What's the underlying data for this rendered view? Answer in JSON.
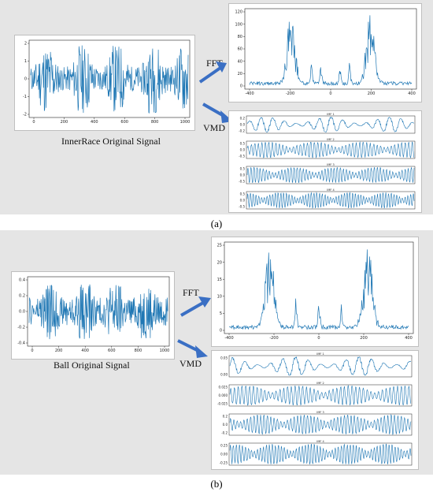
{
  "colors": {
    "signal": "#1f77b4",
    "arrow": "#3a6fc4",
    "panel": "#e5e5e5"
  },
  "panel_a": {
    "label": "(a)",
    "caption": "InnerRace Original Signal",
    "fft_label": "FFT",
    "vmd_label": "VMD",
    "imf_titles": [
      "IMF 1",
      "IMF 2",
      "IMF 3",
      "IMF 4"
    ]
  },
  "panel_b": {
    "label": "(b)",
    "caption": "Ball Original Signal",
    "fft_label": "FFT",
    "vmd_label": "VMD",
    "imf_titles": [
      "IMF 1",
      "IMF 2",
      "IMF 3",
      "IMF 4"
    ]
  },
  "chart_data": [
    {
      "id": "a-signal",
      "type": "line",
      "x_ticks": [
        "0",
        "200",
        "400",
        "600",
        "800",
        "1000"
      ],
      "y_ticks": [
        "2",
        "1",
        "0",
        "-1",
        "-2"
      ],
      "xlim": [
        0,
        1024
      ],
      "ylim": [
        -2.3,
        2.4
      ]
    },
    {
      "id": "a-fft",
      "type": "line",
      "x_ticks": [
        "-400",
        "-200",
        "0",
        "200",
        "400"
      ],
      "y_ticks": [
        "120",
        "100",
        "80",
        "60",
        "40",
        "20",
        "0"
      ],
      "xlim": [
        -512,
        512
      ],
      "ylim": [
        0,
        125
      ],
      "peaks": [
        -250,
        250,
        -60,
        60,
        -120,
        120
      ]
    },
    {
      "id": "a-imf1",
      "type": "line",
      "title": "IMF 1",
      "y_ticks": [
        "0.2",
        "0.0",
        "-0.2"
      ],
      "xlim": [
        0,
        1024
      ]
    },
    {
      "id": "a-imf2",
      "type": "line",
      "title": "IMF 2",
      "y_ticks": [
        "0.5",
        "0.0",
        "-0.5"
      ],
      "xlim": [
        0,
        1024
      ]
    },
    {
      "id": "a-imf3",
      "type": "line",
      "title": "IMF 3",
      "y_ticks": [
        "0.5",
        "0.0",
        "-0.5"
      ],
      "xlim": [
        0,
        1024
      ]
    },
    {
      "id": "a-imf4",
      "type": "line",
      "title": "IMF 4",
      "y_ticks": [
        "0.5",
        "0.0",
        "-0.5"
      ],
      "xlim": [
        0,
        1024
      ]
    },
    {
      "id": "b-signal",
      "type": "line",
      "x_ticks": [
        "0",
        "200",
        "400",
        "600",
        "800",
        "1000"
      ],
      "y_ticks": [
        "0.4",
        "0.2",
        "0.0",
        "-0.2",
        "-0.4"
      ],
      "xlim": [
        0,
        1024
      ],
      "ylim": [
        -0.45,
        0.45
      ]
    },
    {
      "id": "b-fft",
      "type": "line",
      "x_ticks": [
        "-400",
        "-200",
        "0",
        "200",
        "400"
      ],
      "y_ticks": [
        "25",
        "20",
        "15",
        "10",
        "5",
        "0"
      ],
      "xlim": [
        -512,
        512
      ],
      "ylim": [
        0,
        28
      ],
      "peaks": [
        -280,
        280,
        0,
        -130,
        130
      ]
    },
    {
      "id": "b-imf1",
      "type": "line",
      "title": "IMF 1",
      "y_ticks": [
        "0.05",
        "0.00"
      ],
      "xlim": [
        0,
        1024
      ]
    },
    {
      "id": "b-imf2",
      "type": "line",
      "title": "IMF 2",
      "y_ticks": [
        "0.025",
        "0.000",
        "-0.025"
      ],
      "xlim": [
        0,
        1024
      ]
    },
    {
      "id": "b-imf3",
      "type": "line",
      "title": "IMF 3",
      "y_ticks": [
        "0.2",
        "0.0",
        "-0.2"
      ],
      "xlim": [
        0,
        1024
      ]
    },
    {
      "id": "b-imf4",
      "type": "line",
      "title": "IMF 4",
      "y_ticks": [
        "0.25",
        "0.00",
        "-0.25"
      ],
      "xlim": [
        0,
        1024
      ]
    }
  ]
}
